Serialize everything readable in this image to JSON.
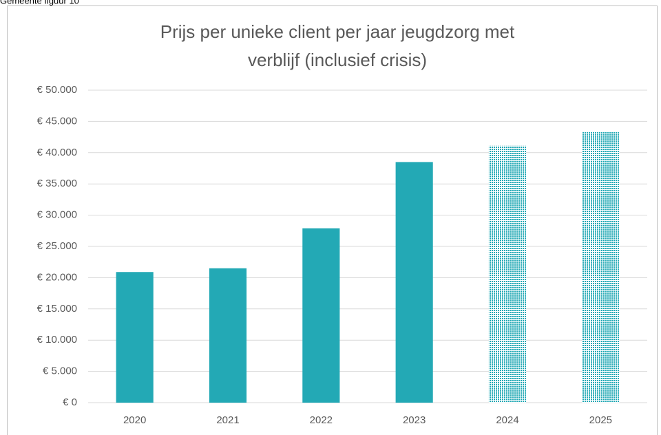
{
  "chart_data": {
    "type": "bar",
    "caption": "Gemeente figuur 10",
    "title": [
      "Prijs per unieke client per jaar jeugdzorg met",
      "verblijf (inclusief crisis)"
    ],
    "categories": [
      "2020",
      "2021",
      "2022",
      "2023",
      "2024",
      "2025"
    ],
    "values": [
      20900,
      21500,
      27900,
      38500,
      41100,
      43300
    ],
    "bar_styles": [
      "solid",
      "solid",
      "solid",
      "solid",
      "dotted",
      "dotted"
    ],
    "color": "#23a9b5",
    "ylim": [
      0,
      50000
    ],
    "yticks": [
      {
        "value": 0,
        "label": "€ 0"
      },
      {
        "value": 5000,
        "label": "€ 5.000"
      },
      {
        "value": 10000,
        "label": "€ 10.000"
      },
      {
        "value": 15000,
        "label": "€ 15.000"
      },
      {
        "value": 20000,
        "label": "€ 20.000"
      },
      {
        "value": 25000,
        "label": "€ 25.000"
      },
      {
        "value": 30000,
        "label": "€ 30.000"
      },
      {
        "value": 35000,
        "label": "€ 35.000"
      },
      {
        "value": 40000,
        "label": "€ 40.000"
      },
      {
        "value": 45000,
        "label": "€ 45.000"
      },
      {
        "value": 50000,
        "label": "€ 50.000"
      }
    ],
    "grid": true
  }
}
